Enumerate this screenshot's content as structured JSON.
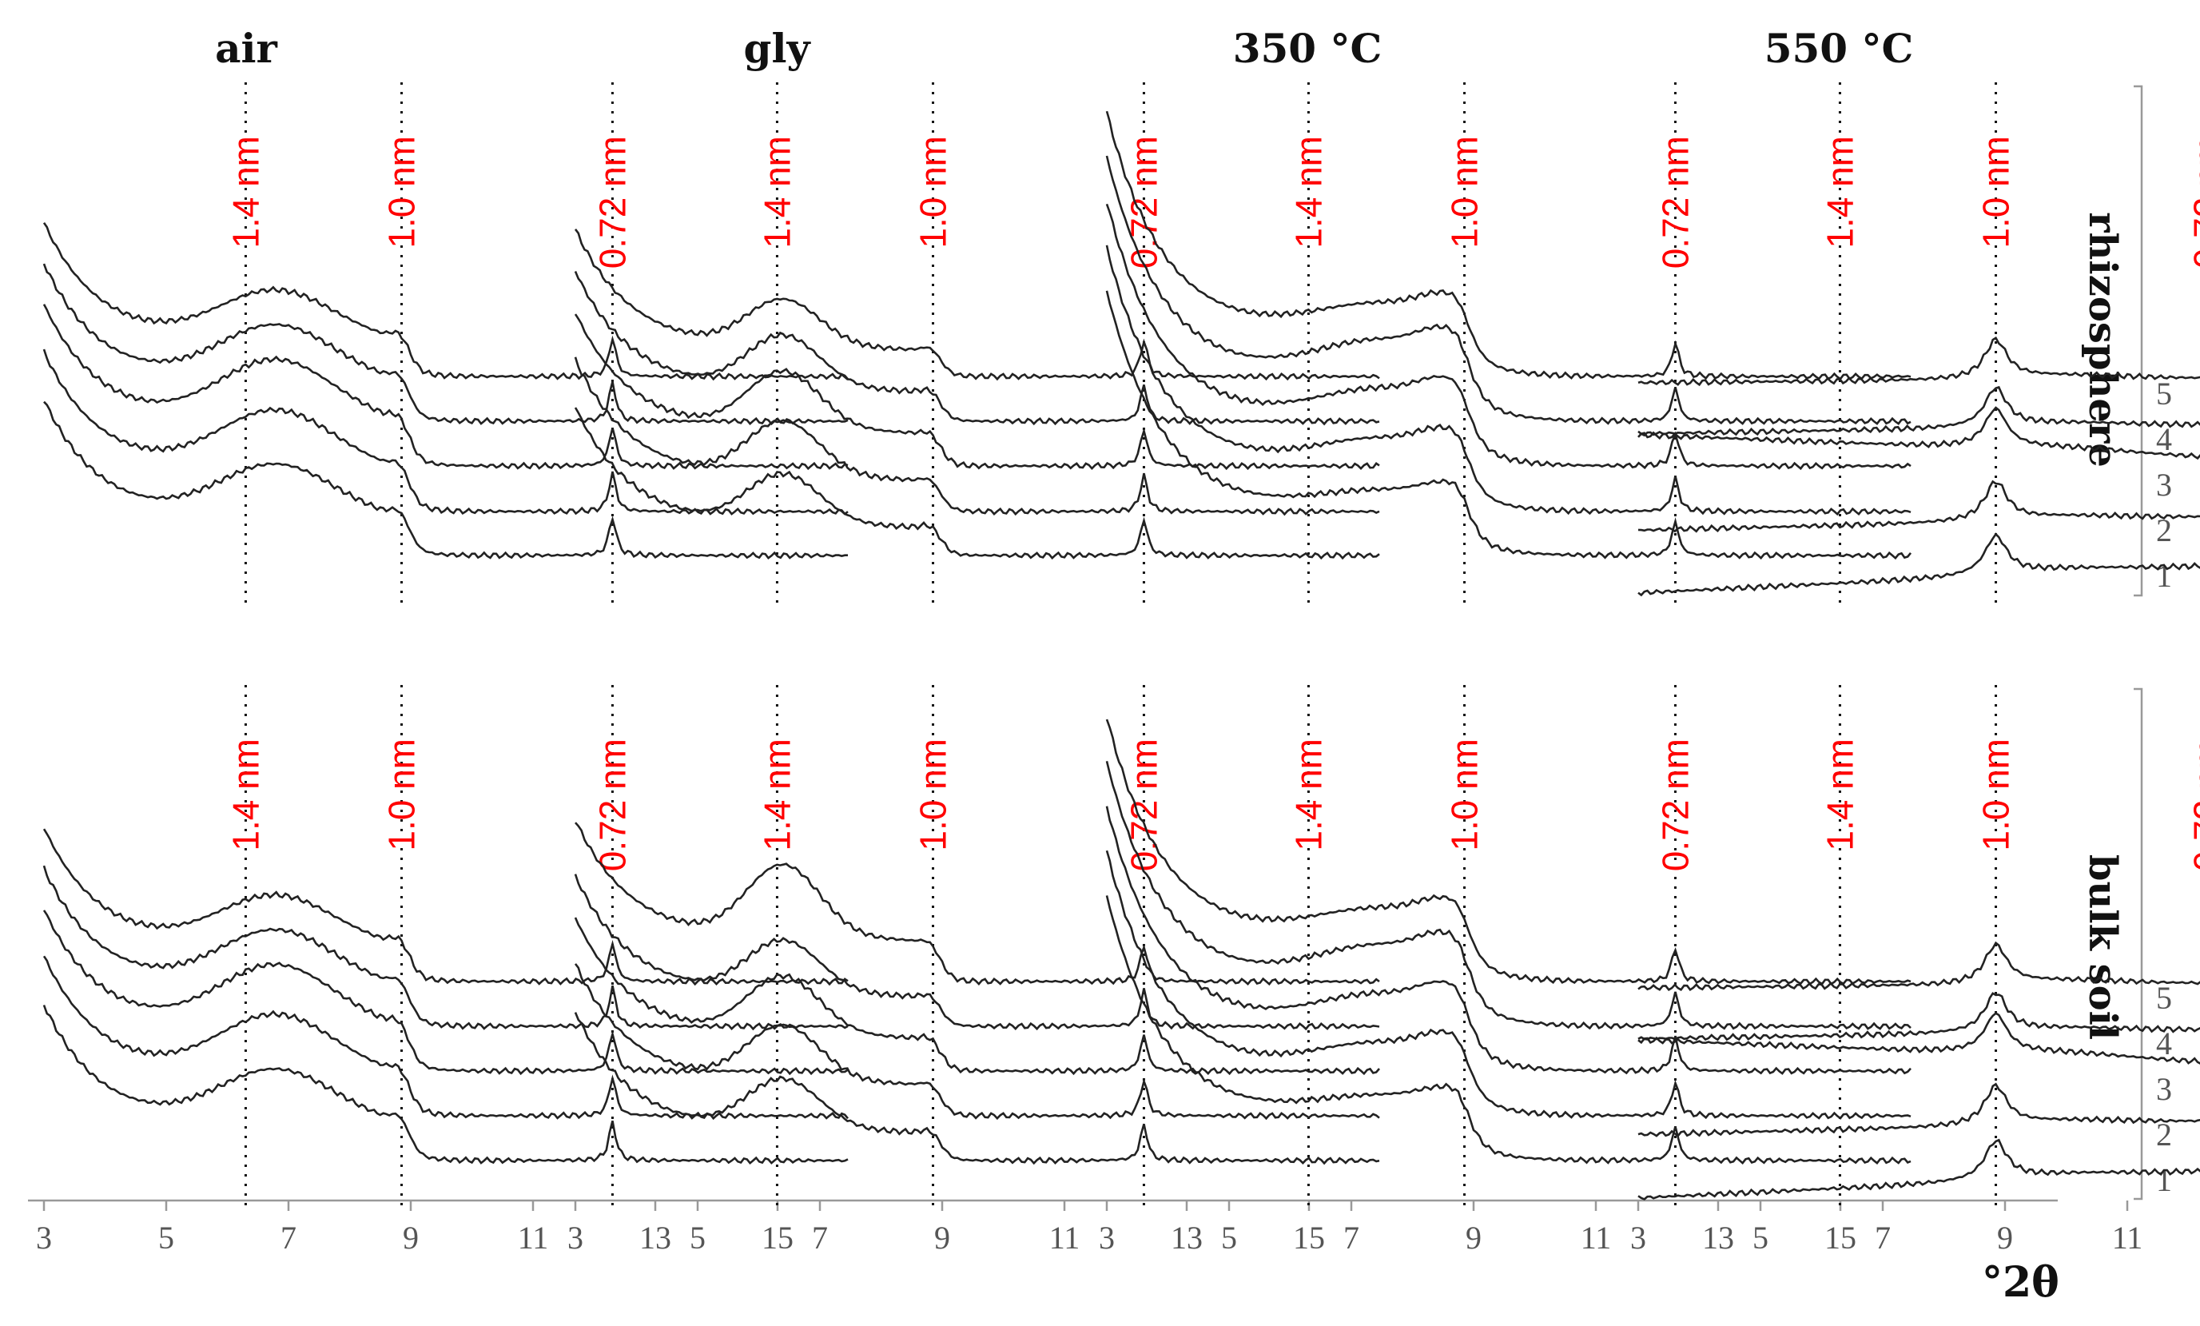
{
  "figure": {
    "x_unit": "°2θ",
    "columns": [
      "air",
      "gly",
      "350 °C",
      "550 °C"
    ],
    "rows": [
      "rhizosphere",
      "bulk soil"
    ],
    "sample_labels": [
      "1",
      "2",
      "3",
      "4",
      "5"
    ],
    "x_ticks": [
      "3",
      "5",
      "7",
      "9",
      "11",
      "13",
      "15"
    ]
  },
  "chart_data": {
    "type": "line",
    "x_unit": "°2θ",
    "xlim": [
      2.5,
      16.2
    ],
    "x_ticks": [
      3,
      5,
      7,
      9,
      11,
      13,
      15
    ],
    "reference_lines": [
      {
        "label": "1.4 nm",
        "x": 6.3
      },
      {
        "label": "1.0 nm",
        "x": 8.85
      },
      {
        "label": "0.72 nm",
        "x": 12.3
      }
    ],
    "series_labels": [
      "1",
      "2",
      "3",
      "4",
      "5"
    ],
    "panels": [
      {
        "row": "rhizosphere",
        "column": "air",
        "profile": "air",
        "bump": [
          1.0,
          1.1,
          0.95,
          0.75,
          0.7
        ],
        "k072": [
          1.0,
          1.0,
          1.0,
          1.0,
          1.0
        ],
        "k10": 0
      }
    ]
  }
}
